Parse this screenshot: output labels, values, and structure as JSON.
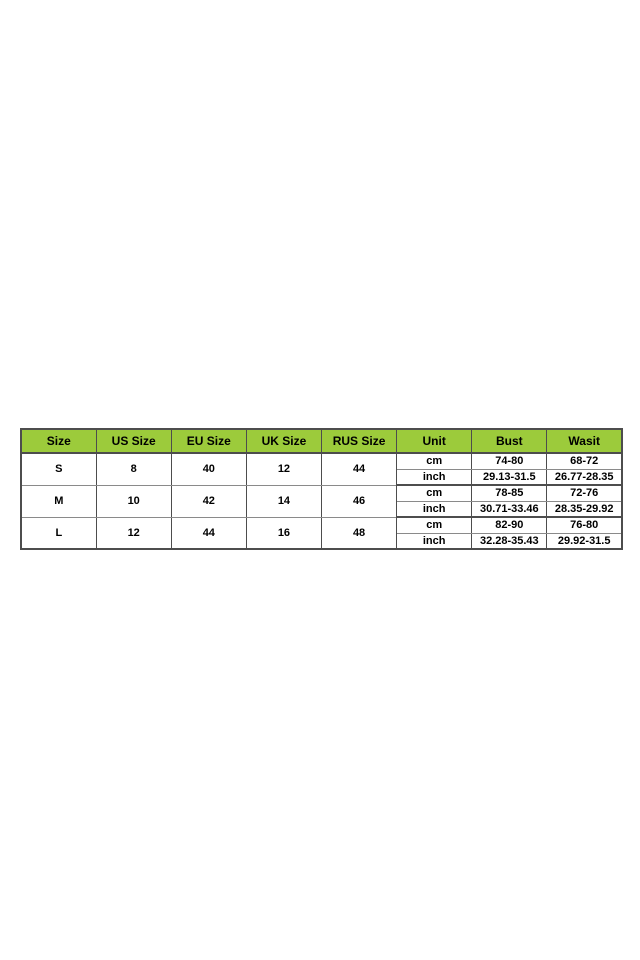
{
  "colors": {
    "header_bg": "#9ccb3b",
    "border": "#4d4d4d",
    "text": "#000000",
    "page_bg": "#ffffff"
  },
  "table": {
    "headers": [
      "Size",
      "US Size",
      "EU Size",
      "UK Size",
      "RUS Size",
      "Unit",
      "Bust",
      "Wasit"
    ],
    "rows": [
      {
        "size": "S",
        "us": "8",
        "eu": "40",
        "uk": "12",
        "rus": "44",
        "cm": {
          "unit": "cm",
          "bust": "74-80",
          "waist": "68-72"
        },
        "inch": {
          "unit": "inch",
          "bust": "29.13-31.5",
          "waist": "26.77-28.35"
        }
      },
      {
        "size": "M",
        "us": "10",
        "eu": "42",
        "uk": "14",
        "rus": "46",
        "cm": {
          "unit": "cm",
          "bust": "78-85",
          "waist": "72-76"
        },
        "inch": {
          "unit": "inch",
          "bust": "30.71-33.46",
          "waist": "28.35-29.92"
        }
      },
      {
        "size": "L",
        "us": "12",
        "eu": "44",
        "uk": "16",
        "rus": "48",
        "cm": {
          "unit": "cm",
          "bust": "82-90",
          "waist": "76-80"
        },
        "inch": {
          "unit": "inch",
          "bust": "32.28-35.43",
          "waist": "29.92-31.5"
        }
      }
    ]
  }
}
